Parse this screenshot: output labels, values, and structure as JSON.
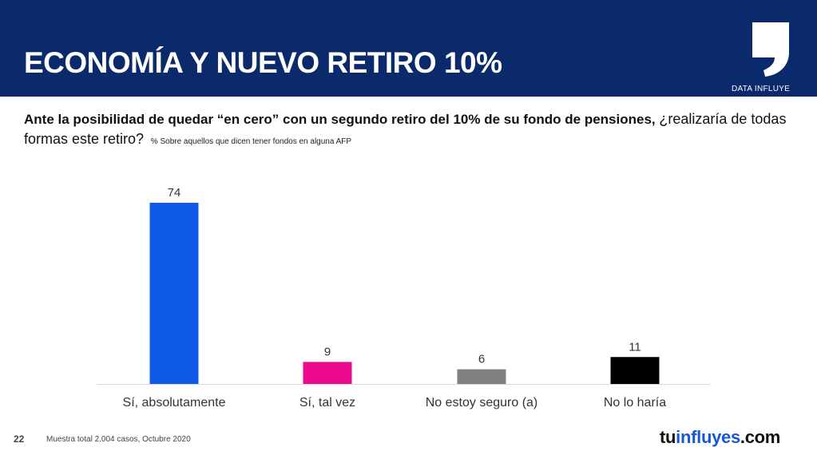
{
  "header": {
    "title": "ECONOMÍA Y NUEVO RETIRO 10%",
    "brand": "DATA INFLUYE",
    "logo_icon": "comma-quote-icon"
  },
  "question": {
    "bold": "Ante la posibilidad de quedar “en cero” con un segundo retiro del 10% de su fondo de pensiones,",
    "normal": "¿realizaría de todas formas este retiro?",
    "note": "% Sobre aquellos que dicen tener fondos en alguna AFP"
  },
  "chart_data": {
    "type": "bar",
    "title": "",
    "xlabel": "",
    "ylabel": "",
    "ylim": [
      0,
      74
    ],
    "categories": [
      "Sí, absolutamente",
      "Sí, tal vez",
      "No estoy seguro (a)",
      "No lo haría"
    ],
    "values": [
      74,
      9,
      6,
      11
    ],
    "colors": [
      "#0f5ae6",
      "#ec0a8f",
      "#808080",
      "#000000"
    ],
    "grid": false
  },
  "footer": {
    "page": "22",
    "note": "Muestra total 2.004 casos,  Octubre 2020",
    "site_part1": "tu",
    "site_part2": "influyes",
    "site_part3": ".com"
  }
}
